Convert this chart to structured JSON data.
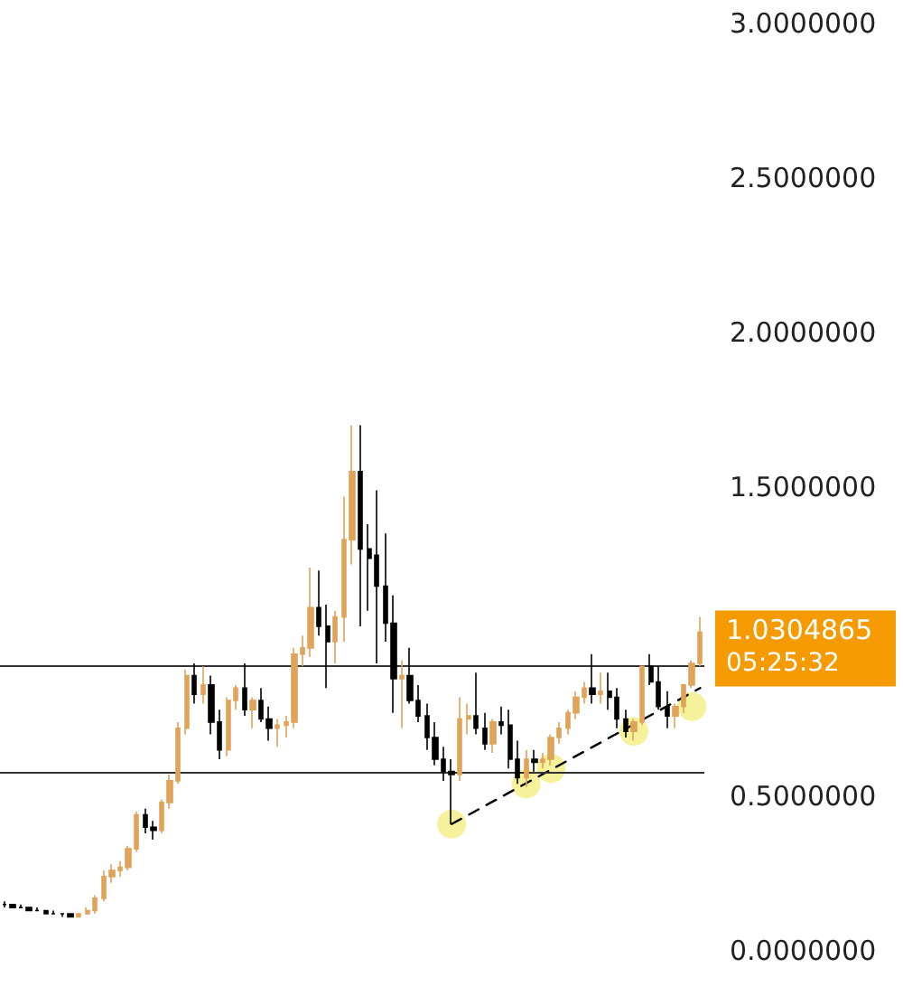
{
  "chart_data": {
    "type": "candlestick",
    "colors": [
      "#000000",
      "#000000",
      "#000000",
      "#000000",
      "#000000",
      "#000000",
      "#000000",
      "#000000",
      "#000000",
      "#e0a35a",
      "#e0a35a",
      "#e0a35a",
      "#e0a35a",
      "#e0a35a",
      "#e0a35a",
      "#e0a35a",
      "#e0a35a",
      "#000000",
      "#000000",
      "#e0a35a",
      "#e0a35a",
      "#e0a35a",
      "#e0a35a",
      "#000000",
      "#e0a35a",
      "#000000",
      "#000000",
      "#e0a35a",
      "#e0a35a",
      "#000000",
      "#e0a35a",
      "#000000",
      "#000000",
      "#e0a35a",
      "#e0a35a",
      "#e0a35a",
      "#e0a35a",
      "#e0a35a",
      "#000000",
      "#000000",
      "#e0a35a",
      "#e0a35a",
      "#e0a35a",
      "#000000",
      "#000000",
      "#000000",
      "#000000",
      "#000000",
      "#e0a35a",
      "#000000",
      "#000000",
      "#000000",
      "#000000",
      "#000000",
      "#000000",
      "#e0a35a",
      "#e0a35a",
      "#000000",
      "#000000",
      "#e0a35a",
      "#000000",
      "#000000",
      "#000000",
      "#e0a35a",
      "#000000",
      "#e0a35a",
      "#e0a35a",
      "#e0a35a",
      "#e0a35a",
      "#e0a35a",
      "#e0a35a",
      "#000000",
      "#e0a35a",
      "#000000",
      "#000000",
      "#000000",
      "#e0a35a",
      "#e0a35a",
      "#000000",
      "#000000",
      "#000000",
      "#e0a35a",
      "#e0a35a",
      "#e0a35a",
      "#e0a35a"
    ],
    "categories": [
      null,
      null,
      null,
      null,
      null,
      null,
      null,
      null,
      null,
      null,
      null,
      null,
      null,
      null,
      null,
      null,
      null,
      null,
      null,
      null,
      null,
      null,
      null,
      null,
      null,
      null,
      null,
      null,
      null,
      null,
      null,
      null,
      null,
      null,
      null,
      null,
      null,
      null,
      null,
      null,
      null,
      null,
      null,
      null,
      null,
      null,
      null,
      null,
      null,
      null,
      null,
      null,
      null,
      null,
      null,
      null,
      null,
      null,
      null,
      null,
      null,
      null,
      null,
      null,
      null,
      null,
      null,
      null,
      null,
      null,
      null,
      null,
      null,
      null,
      null,
      null,
      null,
      null,
      null,
      null,
      null,
      null,
      null,
      null,
      null
    ],
    "ohlc": [
      [
        0.15,
        0.16,
        0.14,
        0.15
      ],
      [
        0.15,
        0.15,
        0.14,
        0.14
      ],
      [
        0.14,
        0.15,
        0.14,
        0.14
      ],
      [
        0.14,
        0.14,
        0.13,
        0.13
      ],
      [
        0.13,
        0.14,
        0.13,
        0.13
      ],
      [
        0.13,
        0.13,
        0.12,
        0.12
      ],
      [
        0.12,
        0.13,
        0.12,
        0.12
      ],
      [
        0.12,
        0.12,
        0.11,
        0.12
      ],
      [
        0.12,
        0.12,
        0.11,
        0.11
      ],
      [
        0.11,
        0.12,
        0.11,
        0.12
      ],
      [
        0.12,
        0.14,
        0.12,
        0.13
      ],
      [
        0.13,
        0.18,
        0.12,
        0.17
      ],
      [
        0.17,
        0.26,
        0.16,
        0.24
      ],
      [
        0.24,
        0.28,
        0.22,
        0.26
      ],
      [
        0.26,
        0.29,
        0.24,
        0.27
      ],
      [
        0.27,
        0.34,
        0.26,
        0.33
      ],
      [
        0.33,
        0.45,
        0.32,
        0.44
      ],
      [
        0.44,
        0.46,
        0.38,
        0.4
      ],
      [
        0.4,
        0.42,
        0.36,
        0.39
      ],
      [
        0.39,
        0.49,
        0.38,
        0.48
      ],
      [
        0.48,
        0.57,
        0.46,
        0.55
      ],
      [
        0.55,
        0.74,
        0.54,
        0.72
      ],
      [
        0.72,
        0.91,
        0.7,
        0.89
      ],
      [
        0.89,
        0.93,
        0.8,
        0.83
      ],
      [
        0.83,
        0.92,
        0.8,
        0.86
      ],
      [
        0.86,
        0.89,
        0.7,
        0.74
      ],
      [
        0.74,
        0.78,
        0.62,
        0.65
      ],
      [
        0.65,
        0.82,
        0.63,
        0.81
      ],
      [
        0.81,
        0.86,
        0.78,
        0.85
      ],
      [
        0.85,
        0.93,
        0.76,
        0.78
      ],
      [
        0.78,
        0.82,
        0.72,
        0.81
      ],
      [
        0.81,
        0.85,
        0.74,
        0.75
      ],
      [
        0.75,
        0.79,
        0.68,
        0.72
      ],
      [
        0.72,
        0.75,
        0.66,
        0.73
      ],
      [
        0.73,
        0.76,
        0.69,
        0.74
      ],
      [
        0.74,
        0.98,
        0.72,
        0.96
      ],
      [
        0.96,
        1.02,
        0.92,
        0.98
      ],
      [
        0.98,
        1.24,
        0.95,
        1.11
      ],
      [
        1.11,
        1.23,
        1.02,
        1.05
      ],
      [
        1.05,
        1.12,
        0.85,
        1.0
      ],
      [
        1.0,
        1.1,
        0.93,
        1.08
      ],
      [
        1.08,
        1.47,
        1.0,
        1.33
      ],
      [
        1.33,
        1.7,
        1.25,
        1.55
      ],
      [
        1.55,
        1.7,
        1.05,
        1.3
      ],
      [
        1.3,
        1.38,
        1.1,
        1.27
      ],
      [
        1.28,
        1.49,
        0.93,
        1.18
      ],
      [
        1.18,
        1.35,
        1.0,
        1.06
      ],
      [
        1.06,
        1.15,
        0.77,
        0.88
      ],
      [
        0.88,
        0.94,
        0.72,
        0.89
      ],
      [
        0.89,
        0.98,
        0.8,
        0.81
      ],
      [
        0.81,
        0.86,
        0.74,
        0.76
      ],
      [
        0.76,
        0.8,
        0.65,
        0.69
      ],
      [
        0.69,
        0.74,
        0.6,
        0.62
      ],
      [
        0.62,
        0.66,
        0.55,
        0.58
      ],
      [
        0.58,
        0.62,
        0.41,
        0.57
      ],
      [
        0.57,
        0.82,
        0.55,
        0.75
      ],
      [
        0.75,
        0.8,
        0.7,
        0.76
      ],
      [
        0.76,
        0.9,
        0.7,
        0.72
      ],
      [
        0.72,
        0.77,
        0.65,
        0.67
      ],
      [
        0.67,
        0.75,
        0.64,
        0.74
      ],
      [
        0.74,
        0.79,
        0.7,
        0.73
      ],
      [
        0.73,
        0.78,
        0.59,
        0.62
      ],
      [
        0.62,
        0.68,
        0.54,
        0.56
      ],
      [
        0.56,
        0.65,
        0.53,
        0.62
      ],
      [
        0.62,
        0.65,
        0.58,
        0.61
      ],
      [
        0.61,
        0.64,
        0.59,
        0.62
      ],
      [
        0.62,
        0.7,
        0.6,
        0.69
      ],
      [
        0.69,
        0.74,
        0.67,
        0.72
      ],
      [
        0.72,
        0.78,
        0.7,
        0.77
      ],
      [
        0.77,
        0.84,
        0.75,
        0.82
      ],
      [
        0.82,
        0.87,
        0.8,
        0.85
      ],
      [
        0.85,
        0.96,
        0.8,
        0.83
      ],
      [
        0.83,
        0.9,
        0.8,
        0.84
      ],
      [
        0.84,
        0.9,
        0.78,
        0.82
      ],
      [
        0.82,
        0.85,
        0.72,
        0.75
      ],
      [
        0.75,
        0.78,
        0.69,
        0.71
      ],
      [
        0.71,
        0.75,
        0.68,
        0.74
      ],
      [
        0.74,
        0.92,
        0.73,
        0.92
      ],
      [
        0.92,
        0.96,
        0.86,
        0.87
      ],
      [
        0.87,
        0.92,
        0.78,
        0.79
      ],
      [
        0.79,
        0.84,
        0.72,
        0.76
      ],
      [
        0.76,
        0.8,
        0.72,
        0.79
      ],
      [
        0.79,
        0.86,
        0.77,
        0.86
      ],
      [
        0.86,
        0.94,
        0.85,
        0.93
      ],
      [
        0.93,
        1.08,
        0.92,
        1.0304865
      ]
    ],
    "series": [
      {
        "type": "line",
        "color": "#000000",
        "line_style": "dashed",
        "values": [
          null,
          null,
          null,
          null,
          null,
          null,
          null,
          null,
          null,
          null,
          null,
          null,
          null,
          null,
          null,
          null,
          null,
          null,
          null,
          null,
          null,
          null,
          null,
          null,
          null,
          null,
          null,
          null,
          null,
          null,
          null,
          null,
          null,
          null,
          null,
          null,
          null,
          null,
          null,
          null,
          null,
          null,
          null,
          null,
          null,
          null,
          null,
          null,
          null,
          null,
          null,
          null,
          null,
          null,
          0.41,
          null,
          null,
          null,
          null,
          null,
          null,
          null,
          null,
          null,
          null,
          null,
          null,
          null,
          null,
          null,
          null,
          null,
          null,
          null,
          null,
          null,
          null,
          null,
          null,
          null,
          null,
          null,
          null,
          null,
          0.85
        ]
      },
      {
        "type": "scatter",
        "color": "#f5ef8a",
        "values": [
          null,
          null,
          null,
          null,
          null,
          null,
          null,
          null,
          null,
          null,
          null,
          null,
          null,
          null,
          null,
          null,
          null,
          null,
          null,
          null,
          null,
          null,
          null,
          null,
          null,
          null,
          null,
          null,
          null,
          null,
          null,
          null,
          null,
          null,
          null,
          null,
          null,
          null,
          null,
          null,
          null,
          null,
          null,
          null,
          null,
          null,
          null,
          null,
          null,
          null,
          null,
          null,
          null,
          null,
          0.41,
          null,
          null,
          null,
          null,
          null,
          null,
          null,
          null,
          0.54,
          null,
          null,
          0.59,
          null,
          null,
          null,
          null,
          null,
          null,
          null,
          null,
          null,
          0.71,
          null,
          null,
          null,
          null,
          null,
          null,
          0.79,
          null
        ]
      }
    ],
    "ref_lines": [
      {
        "axis": "y",
        "value": 0.92
      },
      {
        "axis": "y",
        "value": 0.58
      }
    ],
    "annotations": [
      "1.0304865",
      "05:25:32"
    ],
    "ylim": [
      0,
      3
    ],
    "yticks": [
      {
        "value": 0,
        "label": "0.0000000"
      },
      {
        "value": 0.5,
        "label": "0.5000000"
      },
      {
        "value": 1.5,
        "label": "1.5000000"
      },
      {
        "value": 2,
        "label": "2.0000000"
      },
      {
        "value": 2.5,
        "label": "2.5000000"
      },
      {
        "value": 3,
        "label": "3.0000000"
      }
    ],
    "tick_labels": "y",
    "grid": false
  }
}
